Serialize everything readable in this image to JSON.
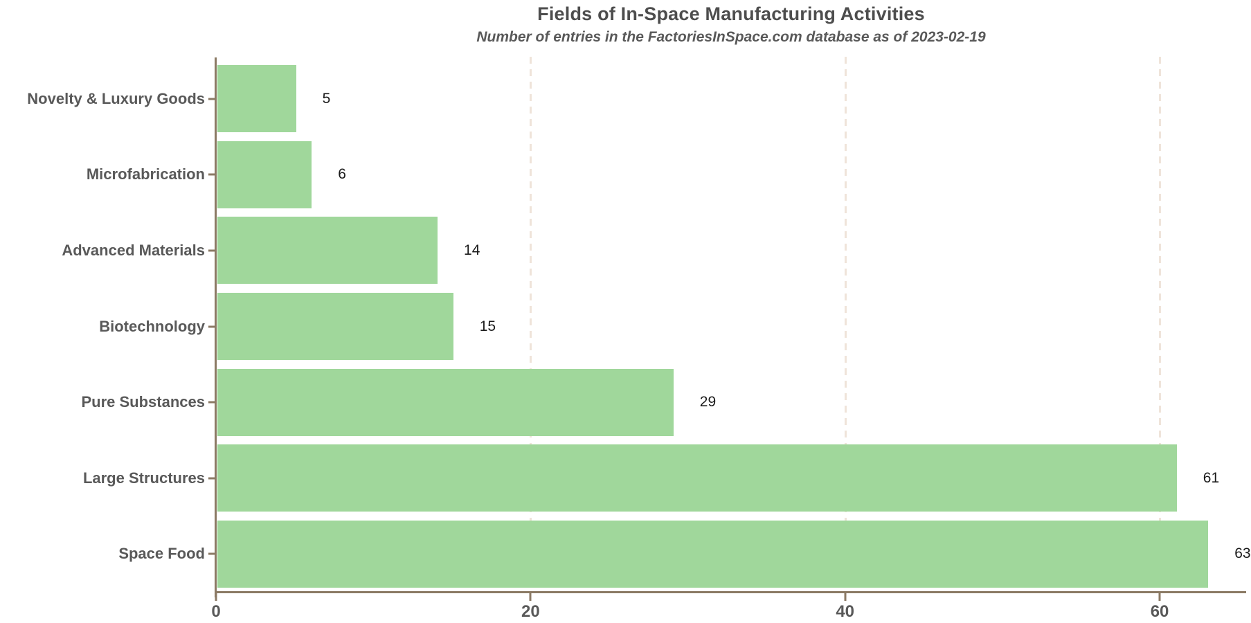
{
  "chart_data": {
    "type": "bar",
    "orientation": "horizontal",
    "title": "Fields of In-Space Manufacturing Activities",
    "subtitle": "Number of entries in the FactoriesInSpace.com database as of 2023-02-19",
    "categories": [
      "Novelty & Luxury Goods",
      "Microfabrication",
      "Advanced Materials",
      "Biotechnology",
      "Pure Substances",
      "Large Structures",
      "Space Food"
    ],
    "values": [
      5,
      6,
      14,
      15,
      29,
      61,
      63
    ],
    "xlabel": "",
    "ylabel": "",
    "x_ticks": [
      0,
      20,
      40,
      60
    ],
    "xlim": [
      0,
      65.5
    ],
    "grid": "vertical-dashed",
    "legend": "none",
    "colors": {
      "bar_fill": "#a0d79b",
      "axis_line": "#8b7a64",
      "gridline": "#efe4da",
      "title_text": "#4d4d4d",
      "label_text": "#595959",
      "value_text": "#1a1a1a"
    }
  }
}
